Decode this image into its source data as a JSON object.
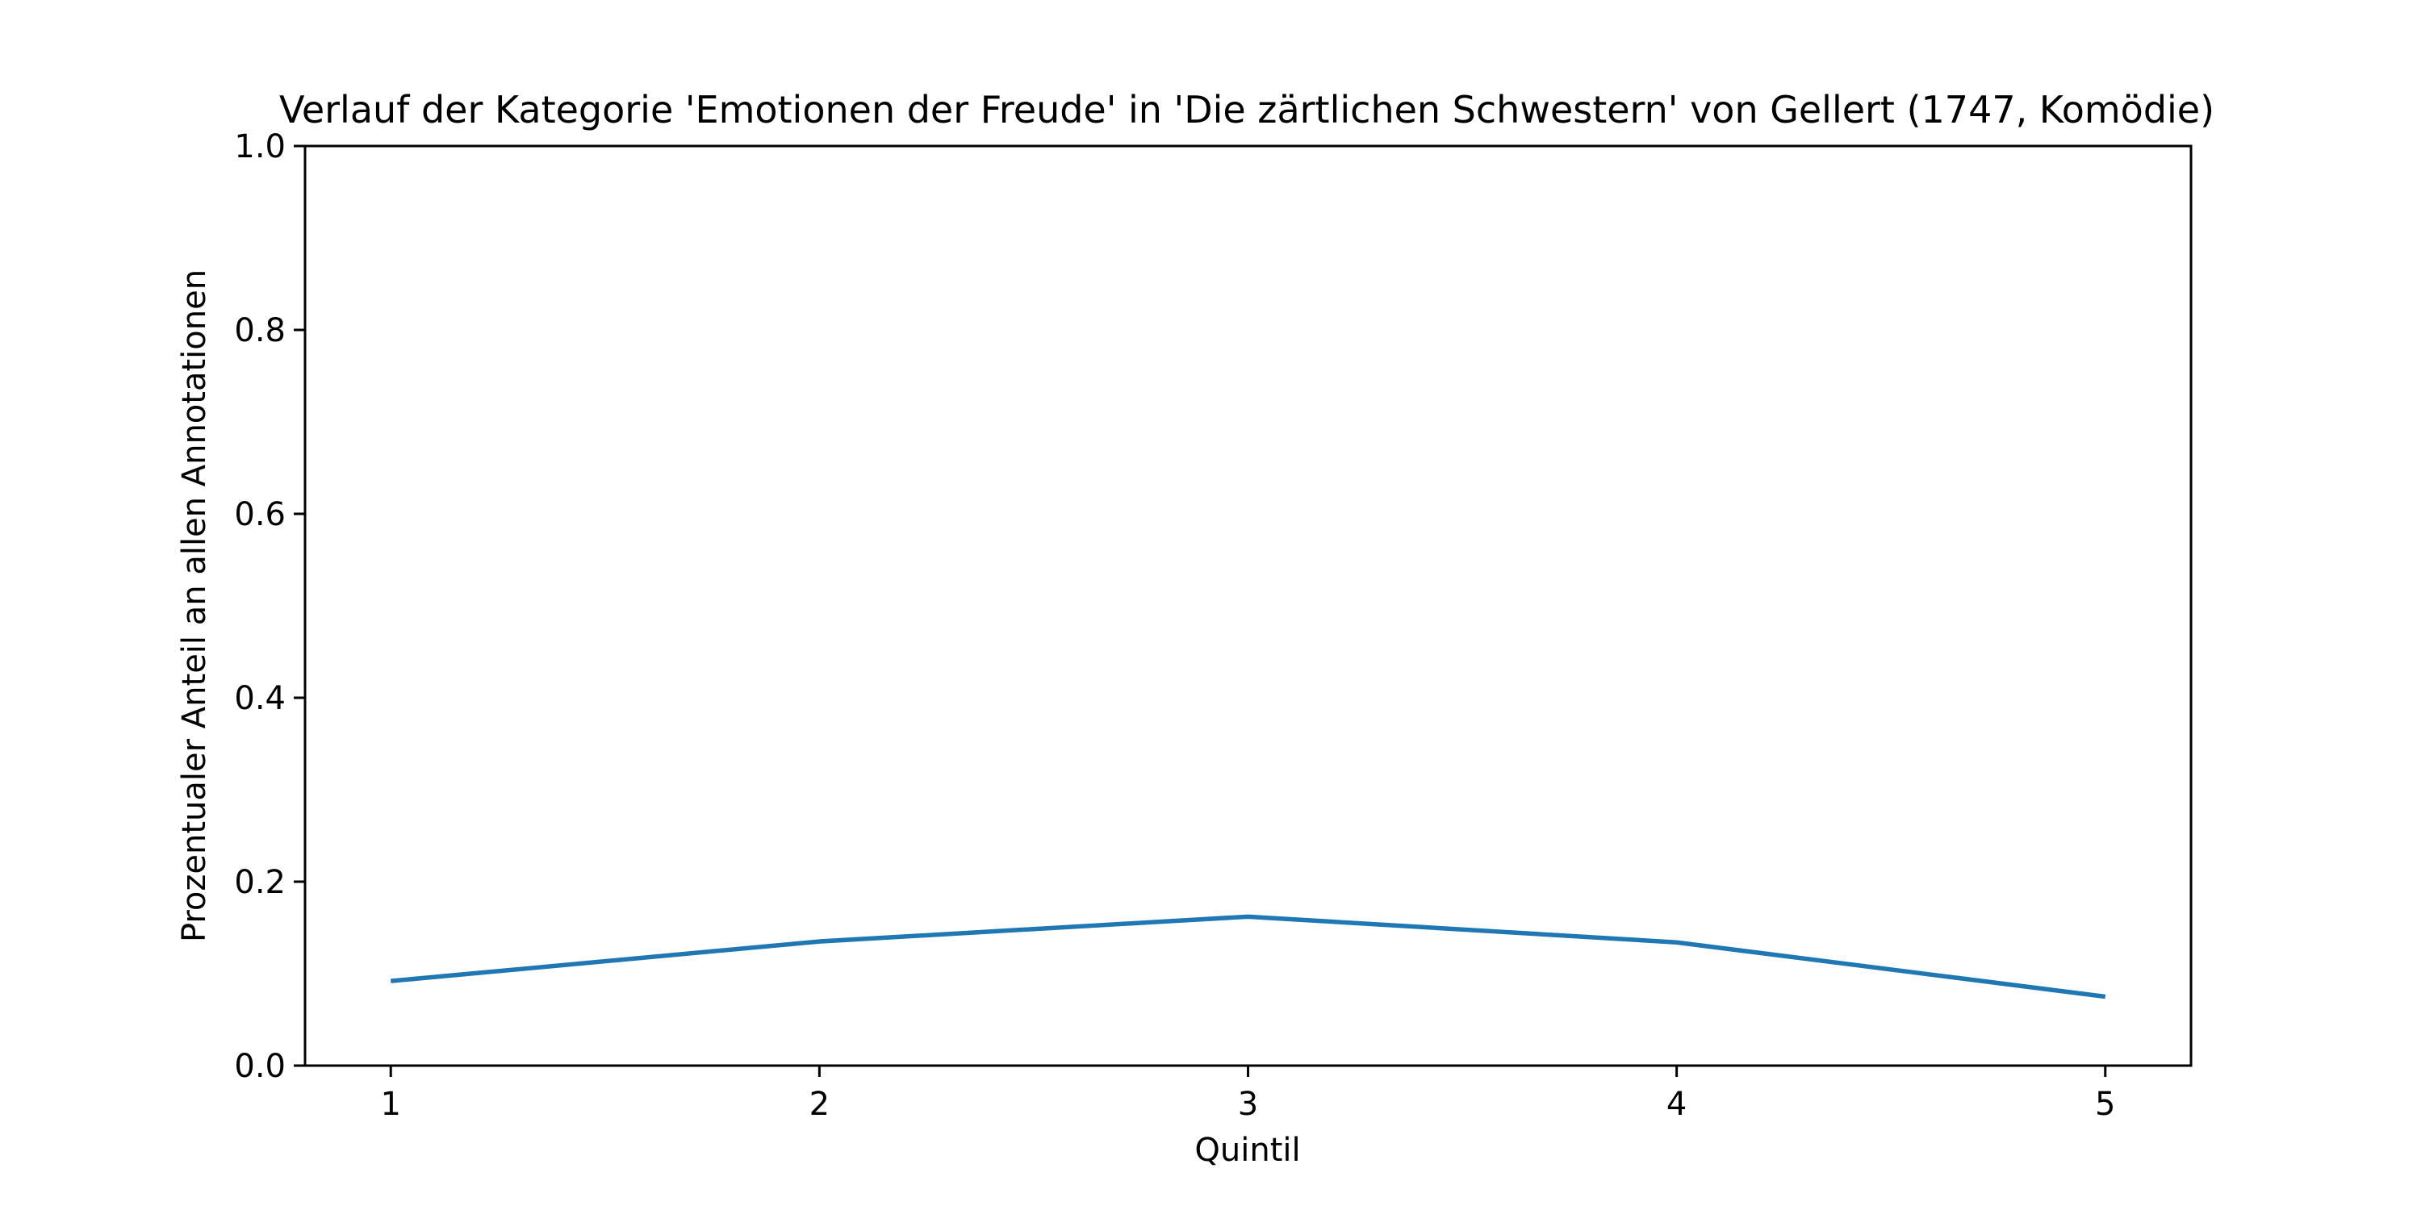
{
  "chart_data": {
    "type": "line",
    "title": "Verlauf der Kategorie 'Emotionen der Freude' in 'Die zärtlichen Schwestern' von Gellert (1747, Komödie)",
    "xlabel": "Quintil",
    "ylabel": "Prozentualer Anteil an allen Annotationen",
    "x": [
      1,
      2,
      3,
      4,
      5
    ],
    "xticks": [
      "1",
      "2",
      "3",
      "4",
      "5"
    ],
    "xlim": [
      0.8,
      5.2
    ],
    "ylim": [
      0.0,
      1.0
    ],
    "yticks": [
      "0.0",
      "0.2",
      "0.4",
      "0.6",
      "0.8",
      "1.0"
    ],
    "grid": false,
    "series": [
      {
        "values": [
          0.092,
          0.135,
          0.162,
          0.134,
          0.075
        ],
        "color": "#1f77b4"
      }
    ]
  }
}
